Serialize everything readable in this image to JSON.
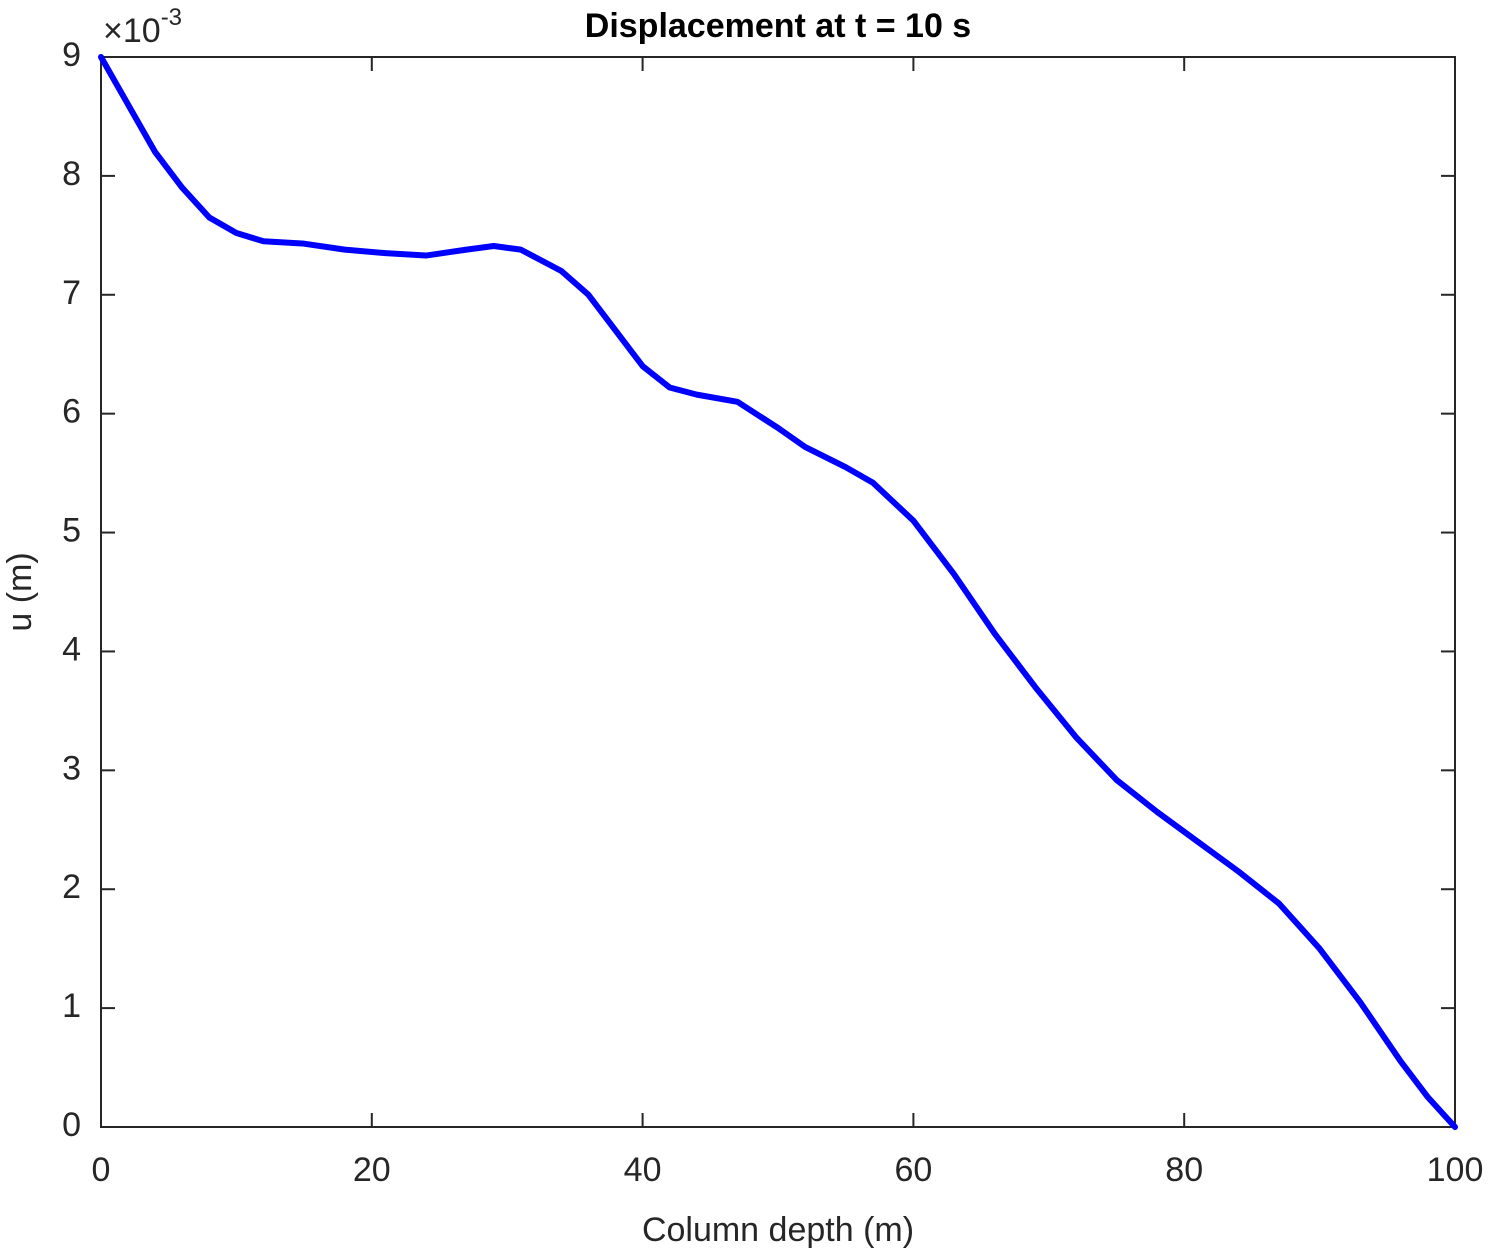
{
  "chart_data": {
    "type": "line",
    "title": "Displacement at t = 10 s",
    "xlabel": "Column depth (m)",
    "ylabel": "u (m)",
    "y_multiplier": {
      "base": "×10",
      "exponent": "-3"
    },
    "x": [
      0,
      2,
      4,
      6,
      8,
      10,
      12,
      15,
      18,
      21,
      24,
      27,
      29,
      31,
      34,
      36,
      38,
      40,
      42,
      44,
      47,
      50,
      52,
      55,
      57,
      60,
      63,
      66,
      69,
      72,
      75,
      78,
      81,
      84,
      87,
      90,
      93,
      96,
      98,
      100
    ],
    "series": [
      {
        "name": "u",
        "color": "#0000ff",
        "values": [
          9.0,
          8.6,
          8.2,
          7.9,
          7.65,
          7.52,
          7.45,
          7.43,
          7.38,
          7.35,
          7.33,
          7.38,
          7.41,
          7.38,
          7.2,
          7.0,
          6.7,
          6.4,
          6.22,
          6.16,
          6.1,
          5.88,
          5.72,
          5.55,
          5.42,
          5.1,
          4.65,
          4.15,
          3.7,
          3.28,
          2.92,
          2.65,
          2.4,
          2.15,
          1.88,
          1.5,
          1.05,
          0.55,
          0.25,
          0
        ]
      }
    ],
    "xlim": [
      0,
      100
    ],
    "xticks": [
      0,
      20,
      40,
      60,
      80,
      100
    ],
    "ylim": [
      0,
      9
    ],
    "yticks": [
      0,
      1,
      2,
      3,
      4,
      5,
      6,
      7,
      8,
      9
    ],
    "grid": false
  }
}
